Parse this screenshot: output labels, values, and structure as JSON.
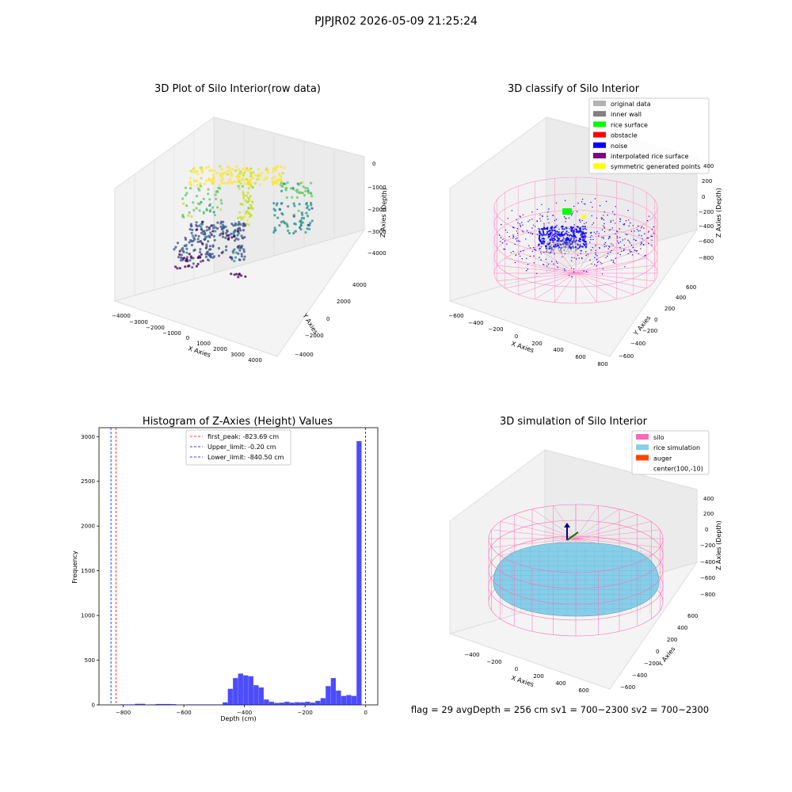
{
  "suptitle": "PJPJR02 2026-05-09 21:25:24",
  "panels": {
    "raw": {
      "title": "3D Plot of Silo Interior(row data)",
      "xlabel": "X Axies",
      "ylabel": "Y Axies",
      "zlabel": "Z Axies (Depth)",
      "x_ticks": [
        "−4000",
        "−3000",
        "−2000",
        "−1000",
        "0",
        "1000",
        "2000",
        "3000",
        "4000"
      ],
      "y_ticks": [
        "−4000",
        "−2000",
        "0",
        "2000",
        "4000"
      ],
      "z_ticks": [
        "0",
        "−1000",
        "−2000",
        "−3000",
        "−4000"
      ]
    },
    "classify": {
      "title": "3D classify of Silo Interior",
      "xlabel": "X Axies",
      "ylabel": "Y Axies",
      "zlabel": "Z Axies (Depth)",
      "x_ticks": [
        "−600",
        "−400",
        "−200",
        "0",
        "200",
        "400",
        "600",
        "800"
      ],
      "y_ticks": [
        "−600",
        "−400",
        "−200",
        "0",
        "200",
        "400",
        "600"
      ],
      "z_ticks": [
        "400",
        "200",
        "0",
        "−200",
        "−400",
        "−600",
        "−800"
      ],
      "legend": [
        {
          "label": "original data",
          "color": "#b3b3b3"
        },
        {
          "label": "inner wall",
          "color": "#808080"
        },
        {
          "label": "rice surface",
          "color": "#00ff00"
        },
        {
          "label": "obstacle",
          "color": "#ff0000"
        },
        {
          "label": "noise",
          "color": "#0000ff"
        },
        {
          "label": "interpolated rice surface",
          "color": "#800080"
        },
        {
          "label": "symmetric generated points",
          "color": "#ffff00"
        }
      ]
    },
    "simulation": {
      "title": "3D simulation of Silo Interior",
      "xlabel": "X Axies",
      "ylabel": "Y Axies",
      "zlabel": "Z Axies (Depth)",
      "x_ticks": [
        "−400",
        "−200",
        "0",
        "200",
        "400",
        "600"
      ],
      "y_ticks": [
        "−600",
        "−400",
        "−200",
        "0",
        "200",
        "400",
        "600"
      ],
      "z_ticks": [
        "400",
        "200",
        "0",
        "−200",
        "−400",
        "−600",
        "−800"
      ],
      "legend": [
        {
          "label": "silo",
          "color": "#ff69b4"
        },
        {
          "label": "rice simulation",
          "color": "#87ceeb"
        },
        {
          "label": "auger",
          "color": "#ff4500"
        },
        {
          "label": "center(100,-10)",
          "color": ""
        }
      ]
    }
  },
  "status_line": "flag = 29  avgDepth = 256 cm  sv1 = 700~2300  sv2 = 700~2300",
  "chart_data": [
    {
      "type": "bar",
      "title": "Histogram of Z-Axies (Height) Values",
      "xlabel": "Depth (cm)",
      "ylabel": "Frequency",
      "xlim": [
        -880,
        40
      ],
      "ylim": [
        0,
        3100
      ],
      "x_ticks": [
        -800,
        -600,
        -400,
        -200,
        0
      ],
      "y_ticks": [
        0,
        500,
        1000,
        1500,
        2000,
        2500,
        3000
      ],
      "bar_color": "#0000ff",
      "bin_width": 17,
      "bins": [
        [
          -812,
          5
        ],
        [
          -795,
          5
        ],
        [
          -778,
          5
        ],
        [
          -761,
          12
        ],
        [
          -744,
          12
        ],
        [
          -710,
          5
        ],
        [
          -693,
          10
        ],
        [
          -676,
          10
        ],
        [
          -659,
          10
        ],
        [
          -642,
          8
        ],
        [
          -591,
          5
        ],
        [
          -574,
          5
        ],
        [
          -557,
          5
        ],
        [
          -540,
          5
        ],
        [
          -523,
          5
        ],
        [
          -506,
          5
        ],
        [
          -489,
          5
        ],
        [
          -472,
          28
        ],
        [
          -455,
          180
        ],
        [
          -438,
          300
        ],
        [
          -421,
          350
        ],
        [
          -404,
          330
        ],
        [
          -387,
          320
        ],
        [
          -370,
          220
        ],
        [
          -353,
          195
        ],
        [
          -336,
          60
        ],
        [
          -319,
          35
        ],
        [
          -302,
          22
        ],
        [
          -285,
          25
        ],
        [
          -268,
          35
        ],
        [
          -251,
          25
        ],
        [
          -234,
          30
        ],
        [
          -217,
          28
        ],
        [
          -200,
          35
        ],
        [
          -183,
          25
        ],
        [
          -166,
          45
        ],
        [
          -149,
          75
        ],
        [
          -132,
          210
        ],
        [
          -115,
          300
        ],
        [
          -98,
          160
        ],
        [
          -81,
          100
        ],
        [
          -64,
          110
        ],
        [
          -47,
          100
        ],
        [
          -30,
          2950
        ]
      ],
      "legend": [
        {
          "label": "first_peak: -823.69 cm",
          "color": "#ff0000",
          "value": -823.69
        },
        {
          "label": "Upper_limit: -0.20 cm",
          "color": "#00008b",
          "value": -0.2
        },
        {
          "label": "Lower_limit: -840.50 cm",
          "color": "#0000ff",
          "value": -840.5
        }
      ]
    }
  ]
}
